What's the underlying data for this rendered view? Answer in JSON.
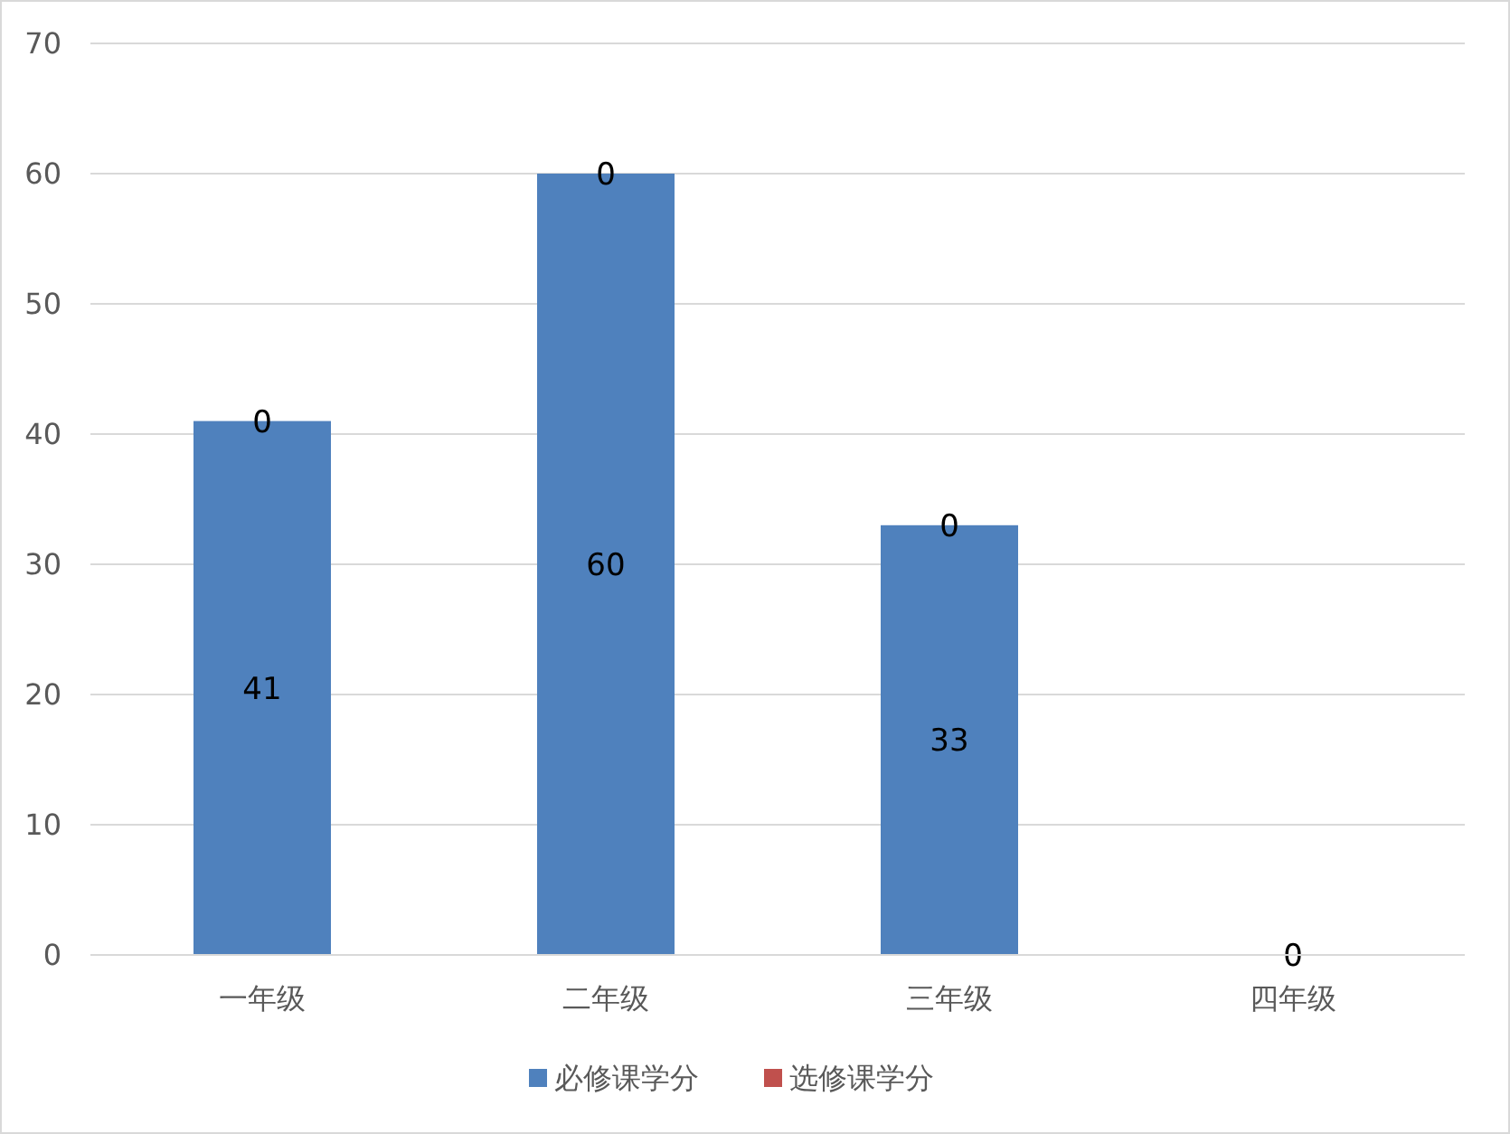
{
  "chart_data": {
    "type": "bar",
    "stacked": true,
    "categories": [
      "一年级",
      "二年级",
      "三年级",
      "四年级"
    ],
    "series": [
      {
        "name": "必修课学分",
        "color": "#4f81bd",
        "values": [
          41,
          60,
          33,
          0
        ],
        "value_labels": [
          "41",
          "60",
          "33",
          null
        ]
      },
      {
        "name": "选修课学分",
        "color": "#c0504d",
        "values": [
          0,
          0,
          0,
          0
        ],
        "value_labels": [
          "0",
          "0",
          "0",
          "0"
        ]
      }
    ],
    "ylim": [
      0,
      70
    ],
    "yticks": [
      0,
      10,
      20,
      30,
      40,
      50,
      60,
      70
    ],
    "grid": "y",
    "legend": "bottom"
  }
}
